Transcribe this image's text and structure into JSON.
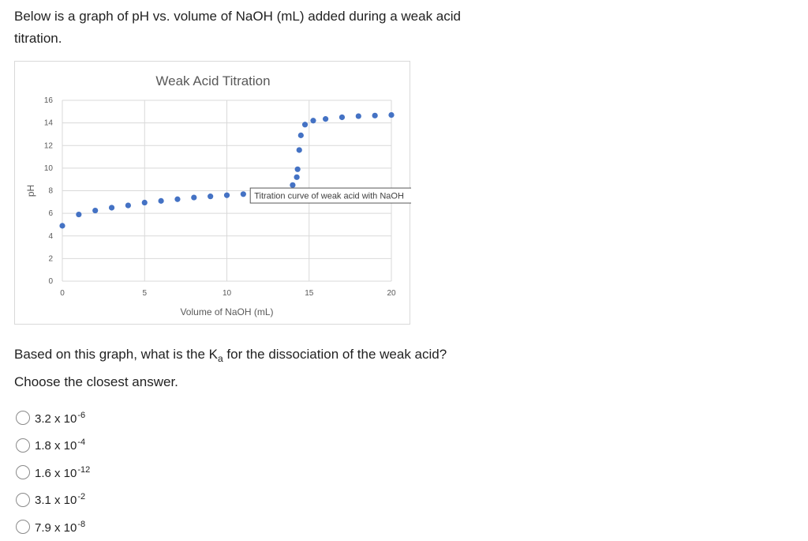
{
  "intro": {
    "text": "Below is a graph of pH vs. volume of NaOH (mL) added during a weak acid titration."
  },
  "chart_data": {
    "type": "scatter",
    "title": "Weak Acid Titration",
    "xlabel": "Volume of NaOH (mL)",
    "ylabel": "pH",
    "xlim": [
      0,
      20
    ],
    "ylim": [
      0,
      16
    ],
    "x_ticks": [
      0,
      5,
      10,
      15,
      20
    ],
    "y_ticks": [
      0,
      2,
      4,
      6,
      8,
      10,
      12,
      14,
      16
    ],
    "grid": true,
    "legend": "none",
    "marker_color": "#4472C4",
    "points": [
      {
        "x": 0,
        "y": 4.9
      },
      {
        "x": 1,
        "y": 5.9
      },
      {
        "x": 2,
        "y": 6.25
      },
      {
        "x": 3,
        "y": 6.5
      },
      {
        "x": 4,
        "y": 6.7
      },
      {
        "x": 5,
        "y": 6.95
      },
      {
        "x": 6,
        "y": 7.1
      },
      {
        "x": 7,
        "y": 7.25
      },
      {
        "x": 8,
        "y": 7.4
      },
      {
        "x": 9,
        "y": 7.5
      },
      {
        "x": 10,
        "y": 7.6
      },
      {
        "x": 11,
        "y": 7.7
      },
      {
        "x": 12,
        "y": 7.75
      },
      {
        "x": 13,
        "y": 7.9
      },
      {
        "x": 14,
        "y": 8.5
      },
      {
        "x": 14.25,
        "y": 9.2
      },
      {
        "x": 14.3,
        "y": 9.9
      },
      {
        "x": 14.4,
        "y": 11.6
      },
      {
        "x": 14.5,
        "y": 12.9
      },
      {
        "x": 14.75,
        "y": 13.85
      },
      {
        "x": 15.25,
        "y": 14.2
      },
      {
        "x": 16,
        "y": 14.35
      },
      {
        "x": 17,
        "y": 14.5
      },
      {
        "x": 18,
        "y": 14.6
      },
      {
        "x": 19,
        "y": 14.65
      },
      {
        "x": 20,
        "y": 14.7
      }
    ],
    "annotation": {
      "text": "Titration curve of weak acid with NaOH",
      "x": 12,
      "y": 7.75
    }
  },
  "question": {
    "line1_pre": "Based on this graph, what is the K",
    "line1_sub": "a",
    "line1_post": " for the dissociation of the weak acid?",
    "line2": "Choose the closest answer."
  },
  "choices": [
    {
      "base": "3.2 x 10",
      "exp": "-6"
    },
    {
      "base": "1.8 x 10",
      "exp": "-4"
    },
    {
      "base": "1.6 x 10",
      "exp": "-12"
    },
    {
      "base": "3.1 x 10",
      "exp": "-2"
    },
    {
      "base": "7.9 x 10",
      "exp": "-8"
    }
  ]
}
